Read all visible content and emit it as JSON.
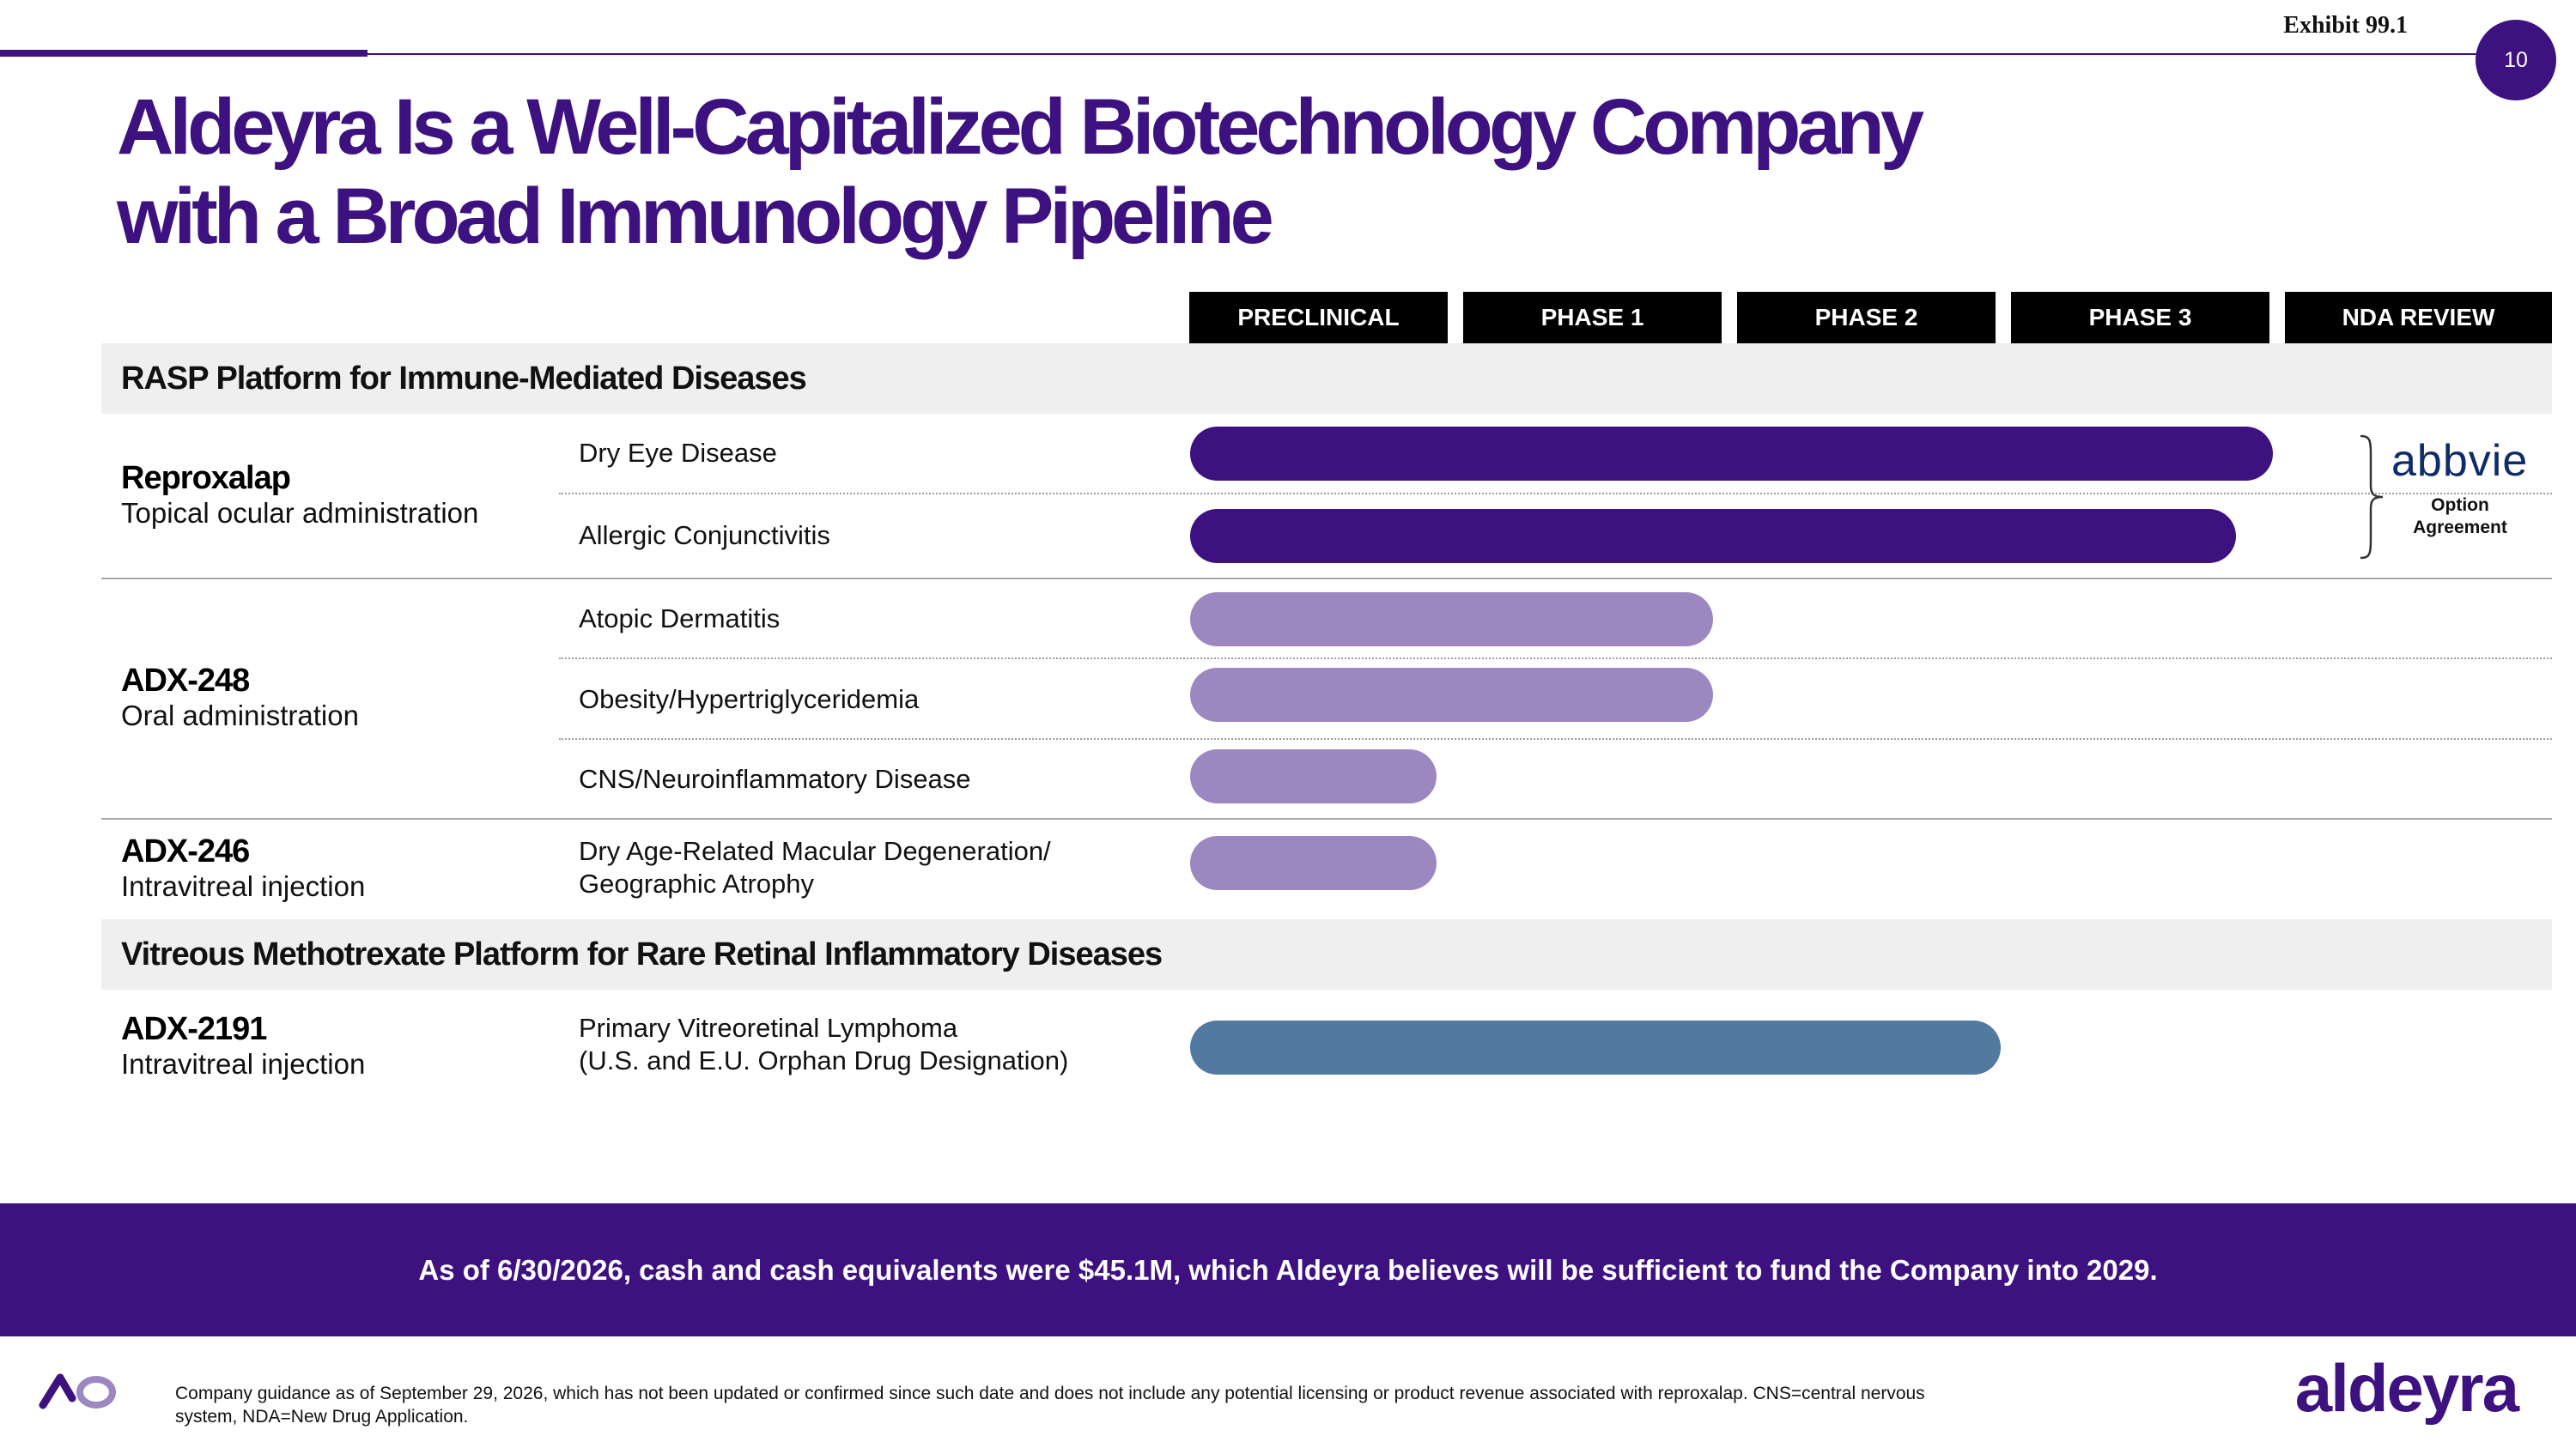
{
  "exhibit": "Exhibit 99.1",
  "page_number": "10",
  "title": {
    "line1": "Aldeyra Is a Well-Capitalized Biotechnology Company",
    "line2": "with a Broad Immunology Pipeline"
  },
  "phases": [
    "PRECLINICAL",
    "PHASE 1",
    "PHASE 2",
    "PHASE 3",
    "NDA REVIEW"
  ],
  "sections": {
    "rasp": "RASP Platform for Immune-Mediated Diseases",
    "methotrexate": "Vitreous Methotrexate Platform for Rare Retinal Inflammatory Diseases"
  },
  "drugs": {
    "reproxalap": {
      "name": "Reproxalap",
      "route": "Topical ocular administration",
      "indications": [
        {
          "label": "Dry Eye Disease",
          "progress": 0.795
        },
        {
          "label": "Allergic Conjunctivitis",
          "progress": 0.768
        }
      ]
    },
    "adx248": {
      "name": "ADX-248",
      "route": "Oral administration",
      "indications": [
        {
          "label": "Atopic Dermatitis",
          "progress": 0.384
        },
        {
          "label": "Obesity/Hypertriglyceridemia",
          "progress": 0.384
        },
        {
          "label": "CNS/Neuroinflammatory Disease",
          "progress": 0.181
        }
      ]
    },
    "adx246": {
      "name": "ADX-246",
      "route": "Intravitreal injection",
      "indications": [
        {
          "line1": "Dry Age-Related Macular Degeneration/",
          "line2": "Geographic Atrophy",
          "progress": 0.181
        }
      ]
    },
    "adx2191": {
      "name": "ADX-2191",
      "route": "Intravitreal injection",
      "indications": [
        {
          "line1": "Primary Vitreoretinal Lymphoma",
          "line2": "(U.S. and E.U. Orphan Drug Designation)",
          "progress": 0.595
        }
      ]
    }
  },
  "partner": {
    "logo_text": "abbvie",
    "note_line1": "Option",
    "note_line2": "Agreement"
  },
  "cash_statement": "As of 6/30/2026, cash and cash equivalents were $45.1M, which Aldeyra believes will be sufficient to fund the Company into 2029.",
  "footnote": {
    "line1": "Company guidance as of September 29, 2026, which has not been updated or confirmed since such date and does not include any potential licensing or product revenue associated with reproxalap. CNS=central nervous",
    "line2": "system, NDA=New Drug Application."
  },
  "brand_wordmark": "aldeyra",
  "colors": {
    "brand_purple": "#3d1280",
    "light_purple": "#9d87c0",
    "steel_blue": "#52799f",
    "band_gray": "#efefef"
  }
}
